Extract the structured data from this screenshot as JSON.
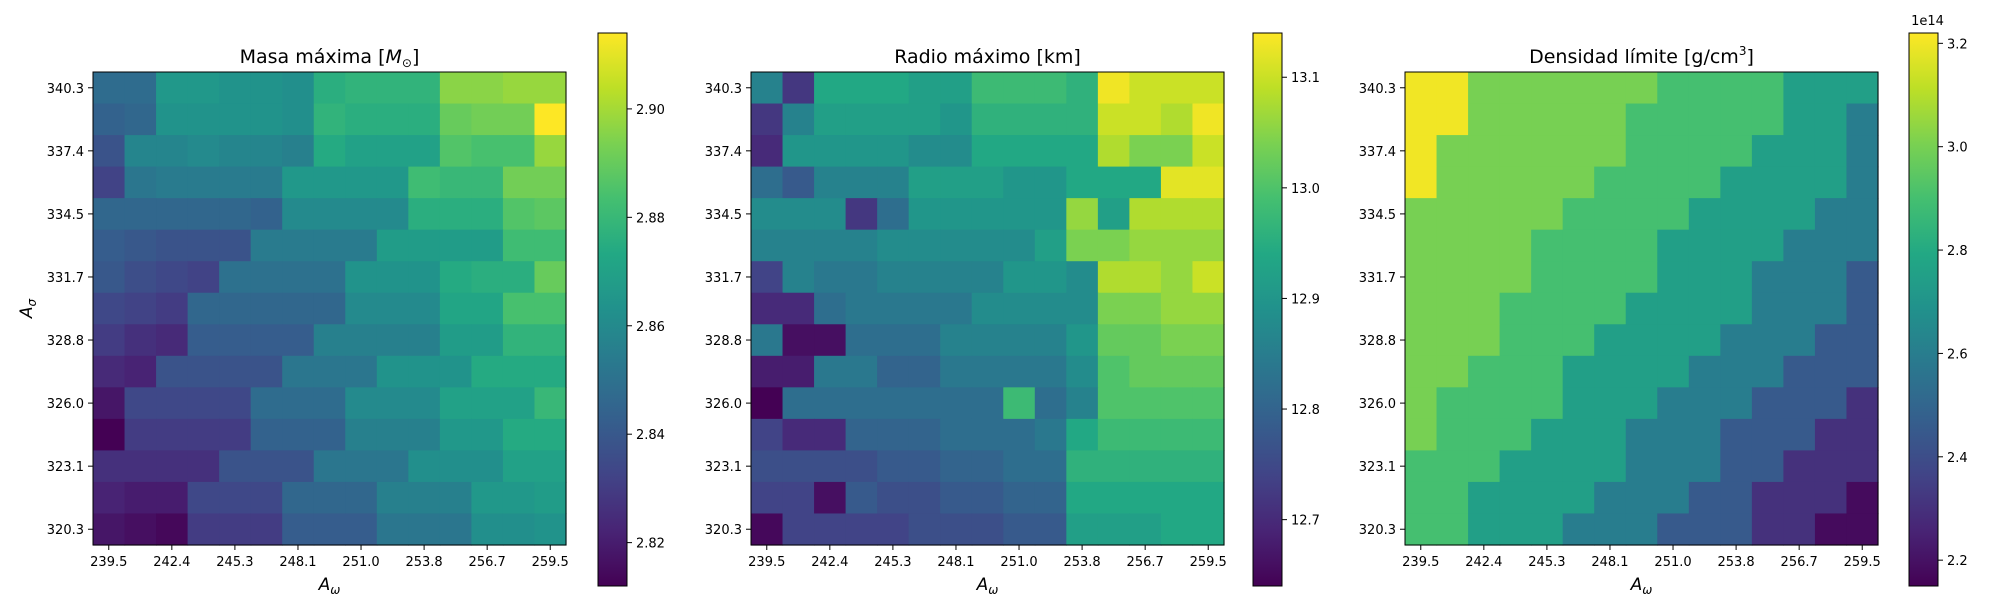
{
  "chart_data": [
    {
      "type": "heatmap",
      "title": "Masa máxima [",
      "title_math": "M",
      "title_sub": "⊙",
      "title_end": "]",
      "xlabel": "A",
      "xlabel_sub": "ω",
      "ylabel": "A",
      "ylabel_sub": "σ",
      "x_ticks": [
        "239.5",
        "242.4",
        "245.3",
        "248.1",
        "251.0",
        "253.8",
        "256.7",
        "259.5"
      ],
      "y_ticks": [
        "340.3",
        "337.4",
        "334.5",
        "331.7",
        "328.8",
        "326.0",
        "323.1",
        "320.3"
      ],
      "colorbar": {
        "min": 2.812,
        "max": 2.914,
        "ticks": [
          2.82,
          2.84,
          2.86,
          2.88,
          2.9
        ],
        "tick_labels": [
          "2.82",
          "2.84",
          "2.86",
          "2.88",
          "2.90"
        ],
        "offset": ""
      },
      "values": [
        [
          2.848,
          2.848,
          2.866,
          2.866,
          2.864,
          2.864,
          2.862,
          2.876,
          2.878,
          2.878,
          2.878,
          2.896,
          2.896,
          2.898,
          2.898
        ],
        [
          2.844,
          2.846,
          2.864,
          2.864,
          2.864,
          2.864,
          2.862,
          2.878,
          2.876,
          2.876,
          2.876,
          2.89,
          2.892,
          2.892,
          2.914
        ],
        [
          2.838,
          2.858,
          2.858,
          2.86,
          2.858,
          2.858,
          2.856,
          2.874,
          2.87,
          2.87,
          2.87,
          2.886,
          2.884,
          2.884,
          2.898
        ],
        [
          2.832,
          2.852,
          2.854,
          2.854,
          2.854,
          2.854,
          2.866,
          2.866,
          2.866,
          2.866,
          2.882,
          2.88,
          2.88,
          2.892,
          2.892
        ],
        [
          2.846,
          2.846,
          2.846,
          2.846,
          2.846,
          2.844,
          2.86,
          2.86,
          2.86,
          2.86,
          2.876,
          2.876,
          2.876,
          2.886,
          2.888
        ],
        [
          2.842,
          2.84,
          2.838,
          2.838,
          2.838,
          2.854,
          2.854,
          2.854,
          2.854,
          2.868,
          2.868,
          2.868,
          2.868,
          2.882,
          2.882
        ],
        [
          2.84,
          2.836,
          2.834,
          2.832,
          2.85,
          2.85,
          2.85,
          2.85,
          2.864,
          2.864,
          2.864,
          2.874,
          2.876,
          2.876,
          2.89
        ],
        [
          2.834,
          2.832,
          2.83,
          2.846,
          2.846,
          2.846,
          2.846,
          2.846,
          2.86,
          2.86,
          2.86,
          2.872,
          2.872,
          2.884,
          2.884
        ],
        [
          2.83,
          2.826,
          2.824,
          2.842,
          2.842,
          2.842,
          2.842,
          2.856,
          2.856,
          2.856,
          2.856,
          2.868,
          2.868,
          2.878,
          2.878
        ],
        [
          2.824,
          2.822,
          2.838,
          2.838,
          2.838,
          2.838,
          2.852,
          2.852,
          2.852,
          2.864,
          2.864,
          2.864,
          2.874,
          2.874,
          2.874
        ],
        [
          2.818,
          2.834,
          2.834,
          2.834,
          2.834,
          2.848,
          2.848,
          2.848,
          2.86,
          2.86,
          2.86,
          2.87,
          2.87,
          2.87,
          2.88
        ],
        [
          2.812,
          2.83,
          2.83,
          2.83,
          2.83,
          2.844,
          2.844,
          2.844,
          2.856,
          2.856,
          2.856,
          2.866,
          2.866,
          2.874,
          2.874
        ],
        [
          2.826,
          2.826,
          2.826,
          2.826,
          2.838,
          2.838,
          2.838,
          2.852,
          2.852,
          2.852,
          2.862,
          2.862,
          2.862,
          2.87,
          2.87
        ],
        [
          2.822,
          2.82,
          2.82,
          2.834,
          2.834,
          2.834,
          2.846,
          2.846,
          2.846,
          2.856,
          2.856,
          2.856,
          2.866,
          2.866,
          2.868
        ],
        [
          2.818,
          2.816,
          2.814,
          2.83,
          2.83,
          2.83,
          2.842,
          2.842,
          2.842,
          2.852,
          2.852,
          2.852,
          2.862,
          2.862,
          2.864
        ]
      ]
    },
    {
      "type": "heatmap",
      "title": "Radio máximo [km]",
      "xlabel": "A",
      "xlabel_sub": "ω",
      "ylabel": "",
      "x_ticks": [
        "239.5",
        "242.4",
        "245.3",
        "248.1",
        "251.0",
        "253.8",
        "256.7",
        "259.5"
      ],
      "y_ticks": [
        "340.3",
        "337.4",
        "334.5",
        "331.7",
        "328.8",
        "326.0",
        "323.1",
        "320.3"
      ],
      "colorbar": {
        "min": 12.64,
        "max": 13.14,
        "ticks": [
          12.7,
          12.8,
          12.9,
          13.0,
          13.1
        ],
        "tick_labels": [
          "12.7",
          "12.8",
          "12.9",
          "13.0",
          "13.1"
        ],
        "offset": ""
      },
      "values": [
        [
          12.86,
          12.72,
          12.94,
          12.94,
          12.94,
          12.92,
          12.92,
          12.98,
          12.98,
          12.98,
          12.96,
          13.13,
          13.1,
          13.1,
          13.1
        ],
        [
          12.72,
          12.86,
          12.92,
          12.92,
          12.92,
          12.92,
          12.9,
          12.96,
          12.96,
          12.96,
          12.96,
          13.1,
          13.1,
          13.08,
          13.13
        ],
        [
          12.7,
          12.9,
          12.9,
          12.9,
          12.9,
          12.88,
          12.88,
          12.94,
          12.94,
          12.94,
          12.94,
          13.08,
          13.04,
          13.04,
          13.1
        ],
        [
          12.82,
          12.78,
          12.86,
          12.86,
          12.86,
          12.92,
          12.92,
          12.92,
          12.9,
          12.9,
          12.94,
          12.94,
          12.94,
          13.12,
          13.12
        ],
        [
          12.88,
          12.88,
          12.88,
          12.72,
          12.82,
          12.9,
          12.9,
          12.9,
          12.9,
          12.9,
          13.06,
          12.92,
          13.08,
          13.08,
          13.08
        ],
        [
          12.86,
          12.86,
          12.86,
          12.86,
          12.88,
          12.88,
          12.88,
          12.88,
          12.88,
          12.92,
          13.04,
          13.04,
          13.06,
          13.06,
          13.06
        ],
        [
          12.74,
          12.86,
          12.84,
          12.84,
          12.86,
          12.86,
          12.86,
          12.86,
          12.9,
          12.9,
          12.88,
          13.08,
          13.08,
          13.06,
          13.1
        ],
        [
          12.7,
          12.7,
          12.82,
          12.84,
          12.84,
          12.84,
          12.84,
          12.88,
          12.88,
          12.88,
          12.88,
          13.04,
          13.04,
          13.06,
          13.06
        ],
        [
          12.84,
          12.66,
          12.66,
          12.82,
          12.82,
          12.82,
          12.86,
          12.86,
          12.86,
          12.86,
          12.9,
          13.02,
          13.02,
          13.04,
          13.04
        ],
        [
          12.68,
          12.68,
          12.84,
          12.84,
          12.8,
          12.8,
          12.84,
          12.84,
          12.84,
          12.84,
          12.88,
          13.0,
          13.02,
          13.02,
          13.02
        ],
        [
          12.64,
          12.82,
          12.82,
          12.82,
          12.82,
          12.82,
          12.82,
          12.82,
          12.98,
          12.82,
          12.86,
          13.0,
          13.0,
          13.0,
          13.0
        ],
        [
          12.74,
          12.7,
          12.7,
          12.8,
          12.8,
          12.8,
          12.82,
          12.82,
          12.82,
          12.84,
          12.94,
          12.98,
          12.98,
          12.98,
          12.98
        ],
        [
          12.76,
          12.76,
          12.76,
          12.76,
          12.78,
          12.78,
          12.8,
          12.8,
          12.82,
          12.82,
          12.96,
          12.96,
          12.96,
          12.96,
          12.96
        ],
        [
          12.74,
          12.74,
          12.66,
          12.78,
          12.76,
          12.76,
          12.78,
          12.78,
          12.8,
          12.8,
          12.94,
          12.94,
          12.94,
          12.94,
          12.94
        ],
        [
          12.65,
          12.74,
          12.74,
          12.74,
          12.74,
          12.76,
          12.76,
          12.76,
          12.78,
          12.78,
          12.92,
          12.92,
          12.92,
          12.94,
          12.94
        ]
      ]
    },
    {
      "type": "heatmap",
      "title": "Densidad límite [g/cm",
      "title_sup": "3",
      "title_end": "]",
      "xlabel": "A",
      "xlabel_sub": "ω",
      "ylabel": "",
      "x_ticks": [
        "239.5",
        "242.4",
        "245.3",
        "248.1",
        "251.0",
        "253.8",
        "256.7",
        "259.5"
      ],
      "y_ticks": [
        "340.3",
        "337.4",
        "334.5",
        "331.7",
        "328.8",
        "326.0",
        "323.1",
        "320.3"
      ],
      "colorbar": {
        "min": 2.15,
        "max": 3.22,
        "ticks": [
          2.2,
          2.4,
          2.6,
          2.8,
          3.0,
          3.2
        ],
        "tick_labels": [
          "2.2",
          "2.4",
          "2.6",
          "2.8",
          "3.0",
          "3.2"
        ],
        "offset": "1e14"
      },
      "values": [
        [
          3.2,
          3.2,
          3.0,
          3.0,
          3.0,
          3.0,
          3.0,
          3.0,
          2.9,
          2.9,
          2.9,
          2.9,
          2.75,
          2.75,
          2.75
        ],
        [
          3.2,
          3.2,
          3.0,
          3.0,
          3.0,
          3.0,
          3.0,
          2.9,
          2.9,
          2.9,
          2.9,
          2.9,
          2.75,
          2.75,
          2.6
        ],
        [
          3.2,
          3.0,
          3.0,
          3.0,
          3.0,
          3.0,
          3.0,
          2.9,
          2.9,
          2.9,
          2.9,
          2.75,
          2.75,
          2.75,
          2.6
        ],
        [
          3.2,
          3.0,
          3.0,
          3.0,
          3.0,
          3.0,
          2.9,
          2.9,
          2.9,
          2.9,
          2.75,
          2.75,
          2.75,
          2.75,
          2.6
        ],
        [
          3.0,
          3.0,
          3.0,
          3.0,
          3.0,
          2.9,
          2.9,
          2.9,
          2.9,
          2.75,
          2.75,
          2.75,
          2.75,
          2.6,
          2.6
        ],
        [
          3.0,
          3.0,
          3.0,
          3.0,
          2.9,
          2.9,
          2.9,
          2.9,
          2.75,
          2.75,
          2.75,
          2.75,
          2.6,
          2.6,
          2.6
        ],
        [
          3.0,
          3.0,
          3.0,
          3.0,
          2.9,
          2.9,
          2.9,
          2.9,
          2.75,
          2.75,
          2.75,
          2.6,
          2.6,
          2.6,
          2.45
        ],
        [
          3.0,
          3.0,
          3.0,
          2.9,
          2.9,
          2.9,
          2.9,
          2.75,
          2.75,
          2.75,
          2.75,
          2.6,
          2.6,
          2.6,
          2.45
        ],
        [
          3.0,
          3.0,
          3.0,
          2.9,
          2.9,
          2.9,
          2.75,
          2.75,
          2.75,
          2.75,
          2.6,
          2.6,
          2.6,
          2.45,
          2.45
        ],
        [
          3.0,
          3.0,
          2.9,
          2.9,
          2.9,
          2.75,
          2.75,
          2.75,
          2.75,
          2.6,
          2.6,
          2.6,
          2.45,
          2.45,
          2.45
        ],
        [
          3.0,
          2.9,
          2.9,
          2.9,
          2.9,
          2.75,
          2.75,
          2.75,
          2.6,
          2.6,
          2.6,
          2.45,
          2.45,
          2.45,
          2.3
        ],
        [
          3.0,
          2.9,
          2.9,
          2.9,
          2.75,
          2.75,
          2.75,
          2.6,
          2.6,
          2.6,
          2.45,
          2.45,
          2.45,
          2.3,
          2.3
        ],
        [
          2.9,
          2.9,
          2.9,
          2.75,
          2.75,
          2.75,
          2.75,
          2.6,
          2.6,
          2.6,
          2.45,
          2.45,
          2.3,
          2.3,
          2.3
        ],
        [
          2.9,
          2.9,
          2.75,
          2.75,
          2.75,
          2.75,
          2.6,
          2.6,
          2.6,
          2.45,
          2.45,
          2.3,
          2.3,
          2.3,
          2.18
        ],
        [
          2.9,
          2.9,
          2.75,
          2.75,
          2.75,
          2.6,
          2.6,
          2.6,
          2.45,
          2.45,
          2.45,
          2.3,
          2.3,
          2.18,
          2.18
        ]
      ]
    }
  ]
}
